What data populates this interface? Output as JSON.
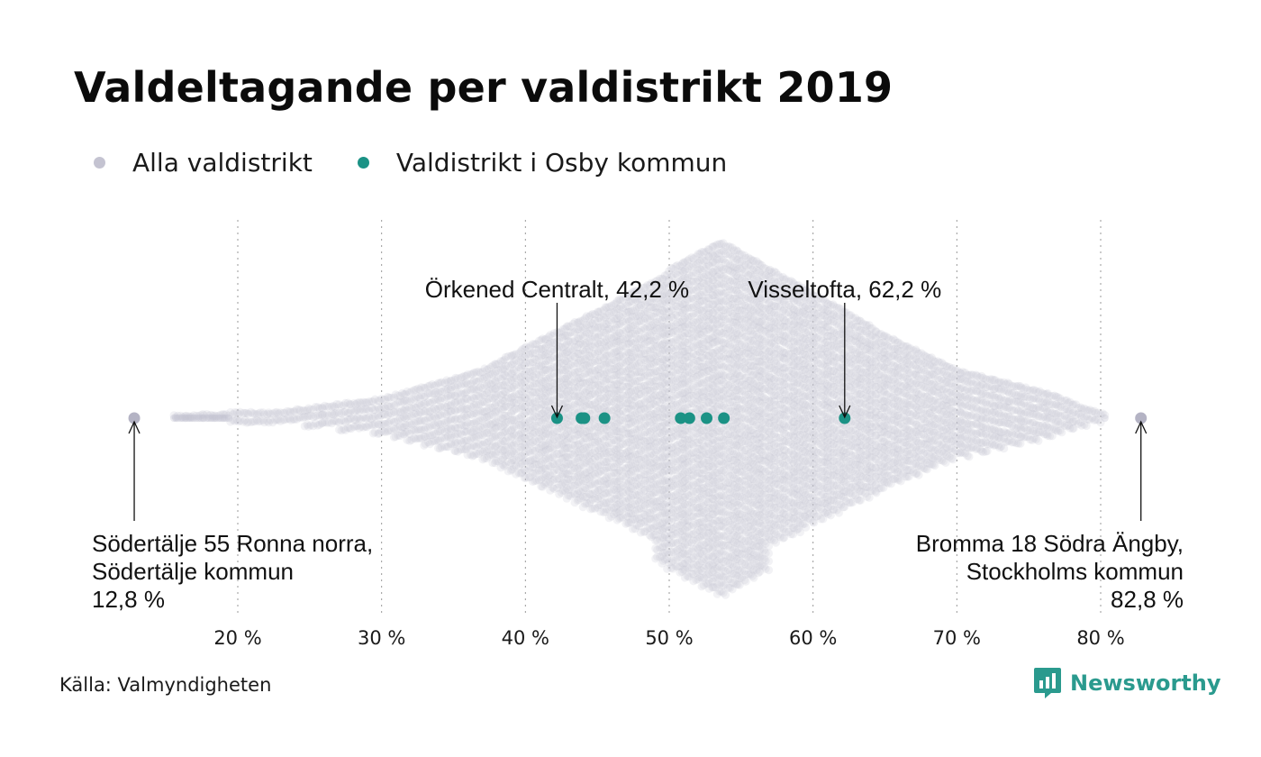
{
  "title": "Valdeltagande per valdistrikt 2019",
  "legend": [
    {
      "label": "Alla valdistrikt",
      "color": "#c4c3d1"
    },
    {
      "label": "Valdistrikt i Osby kommun",
      "color": "#1b9285"
    }
  ],
  "source": "Källa: Valmyndigheten",
  "brand": {
    "name": "Newsworthy",
    "color": "#2a9a8e",
    "icon": "newsworthy-logo-icon"
  },
  "chart_data": {
    "type": "scatter",
    "subtype": "beeswarm",
    "title": "Valdeltagande per valdistrikt 2019",
    "xlabel": "",
    "ylabel": "",
    "xlim": [
      12,
      84
    ],
    "x_ticks": [
      20,
      30,
      40,
      50,
      60,
      70,
      80
    ],
    "x_tick_labels": [
      "20 %",
      "30 %",
      "40 %",
      "50 %",
      "60 %",
      "70 %",
      "80 %"
    ],
    "grid": {
      "vertical": true,
      "style": "dotted"
    },
    "legend_position": "top-left",
    "distribution": {
      "name": "Alla valdistrikt",
      "color": "#c4c3d1",
      "min": 12.8,
      "max": 82.8,
      "peak": 53.6
    },
    "series": [
      {
        "name": "Valdistrikt i Osby kommun",
        "color": "#1b9285",
        "values": [
          42.2,
          43.9,
          44.1,
          45.5,
          50.8,
          51.4,
          52.6,
          53.8,
          62.2
        ]
      }
    ],
    "annotations": [
      {
        "text": "Örkened Centralt, 42,2 %",
        "x": 42.2,
        "position": "above"
      },
      {
        "text": "Visseltofta, 62,2 %",
        "x": 62.2,
        "position": "above"
      },
      {
        "lines": [
          "Södertälje 55 Ronna norra,",
          "Södertälje kommun",
          "12,8 %"
        ],
        "x": 12.8,
        "position": "below-left"
      },
      {
        "lines": [
          "Bromma 18 Södra Ängby,",
          "Stockholms kommun",
          "82,8 %"
        ],
        "x": 82.8,
        "position": "below-right"
      }
    ]
  }
}
